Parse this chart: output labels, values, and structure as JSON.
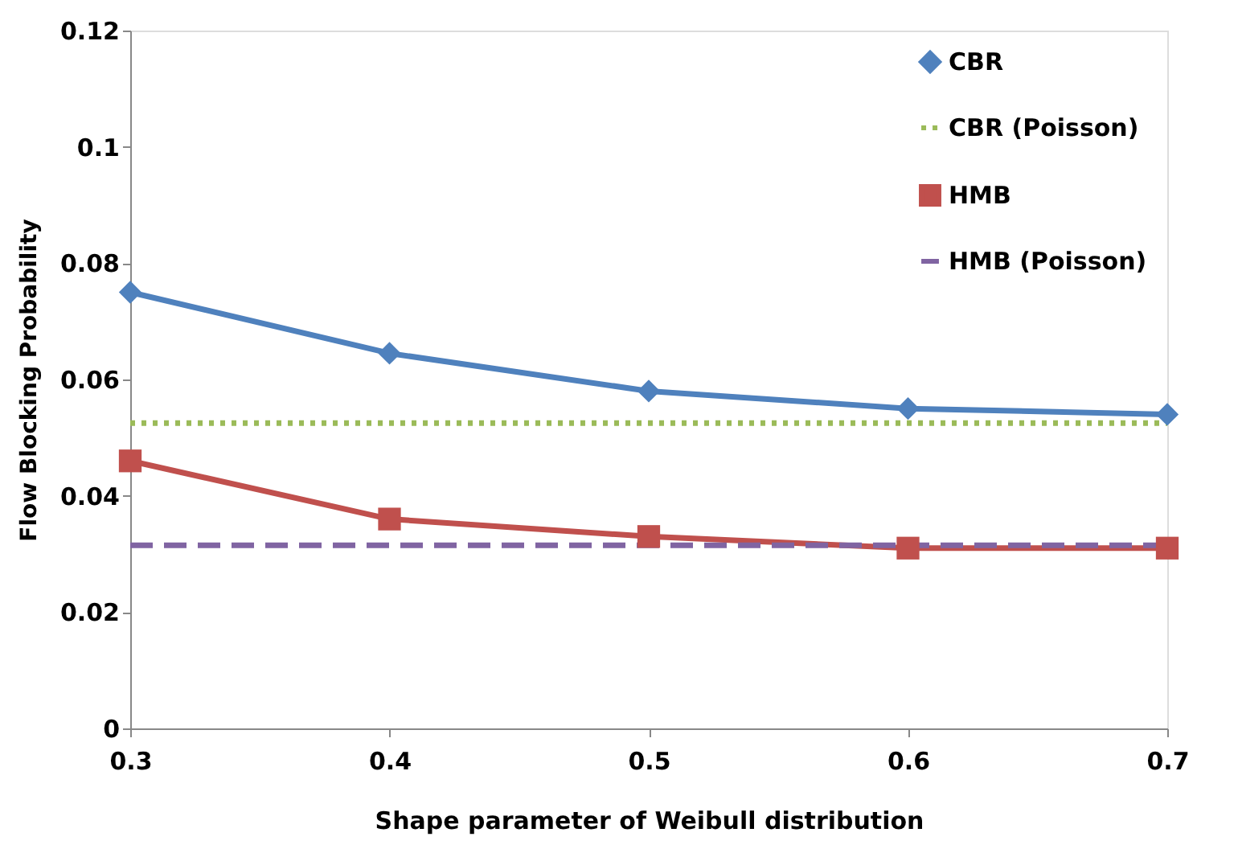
{
  "chart_data": {
    "type": "line",
    "xlabel": "Shape parameter of Weibull distribution",
    "ylabel": "Flow Blocking Probability",
    "x": [
      0.3,
      0.4,
      0.5,
      0.6,
      0.7
    ],
    "series": [
      {
        "name": "CBR",
        "color": "#4f81bd",
        "marker": "diamond",
        "line_style": "solid",
        "values": [
          0.075,
          0.0645,
          0.058,
          0.055,
          0.054
        ]
      },
      {
        "name": "CBR (Poisson)",
        "color": "#9bbb59",
        "marker": "none",
        "line_style": "dotted",
        "values": [
          0.0525,
          0.0525,
          0.0525,
          0.0525,
          0.0525
        ]
      },
      {
        "name": "HMB",
        "color": "#c0504d",
        "marker": "square",
        "line_style": "solid",
        "values": [
          0.046,
          0.036,
          0.033,
          0.031,
          0.031
        ]
      },
      {
        "name": "HMB (Poisson)",
        "color": "#8064a2",
        "marker": "none",
        "line_style": "dashed",
        "values": [
          0.0315,
          0.0315,
          0.0315,
          0.0315,
          0.0315
        ]
      }
    ],
    "xlim": [
      0.3,
      0.7
    ],
    "xticks": [
      0.3,
      0.4,
      0.5,
      0.6,
      0.7
    ],
    "ylim": [
      0,
      0.12
    ],
    "yticks": [
      0,
      0.02,
      0.04,
      0.06,
      0.08,
      0.1,
      0.12
    ],
    "grid": false,
    "legend": "top right"
  }
}
